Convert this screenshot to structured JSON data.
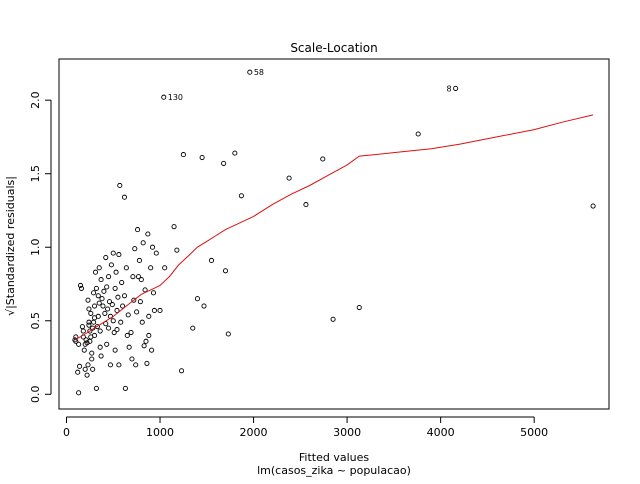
{
  "chart_data": {
    "type": "scatter",
    "title": "Scale-Location",
    "xlabel": "Fitted values",
    "sublabel": "lm(casos_zika ~ populacao)",
    "ylabel": "√|Standardized residuals|",
    "xlim": [
      -80,
      5800
    ],
    "ylim": [
      -0.1,
      2.28
    ],
    "xticks": [
      0,
      1000,
      2000,
      3000,
      4000,
      5000
    ],
    "xtick_labels": [
      "0",
      "1000",
      "2000",
      "3000",
      "4000",
      "5000"
    ],
    "yticks": [
      0.0,
      0.5,
      1.0,
      1.5,
      2.0
    ],
    "ytick_labels": [
      "0.0",
      "0.5",
      "1.0",
      "1.5",
      "2.0"
    ],
    "grid": false,
    "series": [
      {
        "kind": "points",
        "color": "#000000",
        "points": [
          [
            100,
            0.36
          ],
          [
            100,
            0.39
          ],
          [
            90,
            0.37
          ],
          [
            130,
            0.34
          ],
          [
            140,
            0.19
          ],
          [
            120,
            0.15
          ],
          [
            130,
            0.01
          ],
          [
            150,
            0.74
          ],
          [
            160,
            0.72
          ],
          [
            170,
            0.46
          ],
          [
            180,
            0.43
          ],
          [
            180,
            0.39
          ],
          [
            190,
            0.3
          ],
          [
            200,
            0.34
          ],
          [
            200,
            0.17
          ],
          [
            210,
            0.37
          ],
          [
            220,
            0.35
          ],
          [
            220,
            0.13
          ],
          [
            230,
            0.2
          ],
          [
            230,
            0.64
          ],
          [
            240,
            0.58
          ],
          [
            240,
            0.49
          ],
          [
            240,
            0.47
          ],
          [
            250,
            0.43
          ],
          [
            250,
            0.36
          ],
          [
            260,
            0.55
          ],
          [
            260,
            0.39
          ],
          [
            270,
            0.28
          ],
          [
            270,
            0.24
          ],
          [
            280,
            0.17
          ],
          [
            280,
            0.45
          ],
          [
            290,
            0.49
          ],
          [
            290,
            0.69
          ],
          [
            300,
            0.6
          ],
          [
            300,
            0.52
          ],
          [
            300,
            0.4
          ],
          [
            310,
            0.83
          ],
          [
            320,
            0.72
          ],
          [
            320,
            0.04
          ],
          [
            330,
            0.46
          ],
          [
            340,
            0.53
          ],
          [
            340,
            0.67
          ],
          [
            350,
            0.86
          ],
          [
            350,
            0.62
          ],
          [
            360,
            0.43
          ],
          [
            360,
            0.32
          ],
          [
            370,
            0.78
          ],
          [
            370,
            0.26
          ],
          [
            380,
            0.65
          ],
          [
            390,
            0.6
          ],
          [
            400,
            0.7
          ],
          [
            410,
            0.55
          ],
          [
            420,
            0.93
          ],
          [
            420,
            0.48
          ],
          [
            430,
            0.73
          ],
          [
            430,
            0.34
          ],
          [
            440,
            0.58
          ],
          [
            450,
            0.8
          ],
          [
            450,
            0.45
          ],
          [
            460,
            0.63
          ],
          [
            470,
            0.53
          ],
          [
            470,
            0.2
          ],
          [
            480,
            0.88
          ],
          [
            490,
            0.61
          ],
          [
            500,
            0.96
          ],
          [
            500,
            0.5
          ],
          [
            510,
            0.42
          ],
          [
            520,
            0.72
          ],
          [
            520,
            0.3
          ],
          [
            530,
            0.83
          ],
          [
            540,
            0.57
          ],
          [
            540,
            0.44
          ],
          [
            550,
            0.66
          ],
          [
            560,
            0.95
          ],
          [
            560,
            0.2
          ],
          [
            570,
            1.42
          ],
          [
            580,
            0.49
          ],
          [
            590,
            0.76
          ],
          [
            600,
            0.6
          ],
          [
            620,
            1.34
          ],
          [
            620,
            0.67
          ],
          [
            630,
            0.04
          ],
          [
            640,
            0.86
          ],
          [
            650,
            0.4
          ],
          [
            660,
            0.54
          ],
          [
            670,
            0.32
          ],
          [
            690,
            0.42
          ],
          [
            700,
            0.24
          ],
          [
            710,
            0.8
          ],
          [
            720,
            0.64
          ],
          [
            730,
            0.99
          ],
          [
            740,
            0.2
          ],
          [
            750,
            0.56
          ],
          [
            760,
            1.12
          ],
          [
            770,
            0.8
          ],
          [
            780,
            0.91
          ],
          [
            790,
            0.63
          ],
          [
            800,
            0.78
          ],
          [
            810,
            0.49
          ],
          [
            820,
            1.03
          ],
          [
            830,
            0.33
          ],
          [
            840,
            0.71
          ],
          [
            850,
            0.36
          ],
          [
            860,
            0.21
          ],
          [
            870,
            1.09
          ],
          [
            880,
            0.53
          ],
          [
            880,
            0.4
          ],
          [
            900,
            0.86
          ],
          [
            910,
            0.3
          ],
          [
            920,
            1.0
          ],
          [
            930,
            0.69
          ],
          [
            940,
            0.57
          ],
          [
            960,
            0.96
          ],
          [
            1000,
            0.57
          ],
          [
            1050,
            0.86
          ],
          [
            1150,
            1.14
          ],
          [
            1180,
            0.98
          ],
          [
            1230,
            0.16
          ],
          [
            1250,
            1.63
          ],
          [
            1350,
            0.45
          ],
          [
            1400,
            0.65
          ],
          [
            1450,
            1.61
          ],
          [
            1470,
            0.6
          ],
          [
            1550,
            0.91
          ],
          [
            1680,
            1.57
          ],
          [
            1700,
            0.84
          ],
          [
            1730,
            0.41
          ],
          [
            1800,
            1.64
          ],
          [
            1870,
            1.35
          ],
          [
            2380,
            1.47
          ],
          [
            2560,
            1.29
          ],
          [
            2740,
            1.6
          ],
          [
            2850,
            0.51
          ],
          [
            3130,
            0.59
          ],
          [
            3760,
            1.77
          ],
          [
            5630,
            1.28
          ]
        ]
      },
      {
        "kind": "labeled-points",
        "color": "#000000",
        "points": [
          {
            "x": 1040,
            "y": 2.02,
            "label": "130",
            "side": "right"
          },
          {
            "x": 1960,
            "y": 2.19,
            "label": "58",
            "side": "right"
          },
          {
            "x": 4160,
            "y": 2.08,
            "label": "8",
            "side": "left"
          }
        ]
      },
      {
        "kind": "line",
        "color": "#dd1111",
        "points": [
          [
            90,
            0.37
          ],
          [
            200,
            0.41
          ],
          [
            300,
            0.45
          ],
          [
            400,
            0.49
          ],
          [
            500,
            0.53
          ],
          [
            600,
            0.58
          ],
          [
            700,
            0.63
          ],
          [
            800,
            0.68
          ],
          [
            900,
            0.71
          ],
          [
            1000,
            0.74
          ],
          [
            1100,
            0.8
          ],
          [
            1200,
            0.88
          ],
          [
            1300,
            0.94
          ],
          [
            1400,
            1.0
          ],
          [
            1500,
            1.04
          ],
          [
            1600,
            1.08
          ],
          [
            1700,
            1.12
          ],
          [
            1800,
            1.15
          ],
          [
            2000,
            1.21
          ],
          [
            2200,
            1.29
          ],
          [
            2400,
            1.36
          ],
          [
            2600,
            1.42
          ],
          [
            2800,
            1.49
          ],
          [
            3000,
            1.56
          ],
          [
            3130,
            1.62
          ],
          [
            3300,
            1.63
          ],
          [
            3600,
            1.65
          ],
          [
            3900,
            1.67
          ],
          [
            4200,
            1.7
          ],
          [
            4600,
            1.75
          ],
          [
            5000,
            1.8
          ],
          [
            5300,
            1.85
          ],
          [
            5630,
            1.9
          ]
        ]
      }
    ]
  }
}
